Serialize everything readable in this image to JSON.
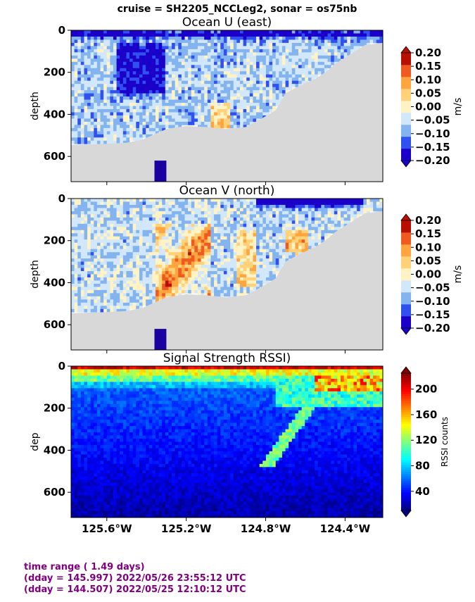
{
  "suptitle": "cruise = SH2205_NCCLeg2,  sonar = os75nb",
  "footer": {
    "line1": "time range ( 1.49 days)",
    "line2": "(dday = 145.997) 2022/05/26 23:55:12 UTC",
    "line3": "(dday = 144.507) 2022/05/25 12:10:12 UTC",
    "color": "#800080"
  },
  "chart_data": [
    {
      "type": "heatmap",
      "title": "Ocean U (east)",
      "ylabel": "depth",
      "xlabel": "",
      "ylim": [
        720,
        0
      ],
      "xlim": [
        -125.78,
        -124.21
      ],
      "yticks": [
        0,
        200,
        400,
        600
      ],
      "xticks": [
        -125.6,
        -125.2,
        -124.8,
        -124.4
      ],
      "xtick_labels": [
        "125.6°W",
        "125.2°W",
        "124.8°W",
        "124.4°W"
      ],
      "show_xtick_labels": false,
      "colorbar": {
        "label": "m/s",
        "ticks": [
          "0.20",
          "0.15",
          "0.10",
          "0.05",
          "0.00",
          "−0.05",
          "−0.10",
          "−0.15",
          "−0.20"
        ],
        "levels": [
          -0.2,
          -0.15,
          -0.1,
          -0.05,
          0,
          0.05,
          0.1,
          0.15,
          0.2
        ],
        "colors": [
          "#1a00c8",
          "#3050f0",
          "#84b4f0",
          "#d2e8fa",
          "#fff3c4",
          "#ffd27a",
          "#ffa540",
          "#ee5a20",
          "#b81000"
        ],
        "extend": "both"
      },
      "bottom_profile": {
        "lon": [
          -125.78,
          -125.6,
          -125.5,
          -125.42,
          -125.3,
          -125.2,
          -125.1,
          -125.0,
          -124.9,
          -124.82,
          -124.75,
          -124.7,
          -124.62,
          -124.55,
          -124.5,
          -124.45,
          -124.4,
          -124.35,
          -124.3,
          -124.21
        ],
        "depth": [
          545,
          540,
          535,
          520,
          470,
          455,
          460,
          470,
          460,
          420,
          380,
          300,
          260,
          230,
          200,
          160,
          130,
          100,
          70,
          60
        ]
      }
    },
    {
      "type": "heatmap",
      "title": "Ocean V (north)",
      "ylabel": "depth",
      "xlabel": "",
      "ylim": [
        720,
        0
      ],
      "xlim": [
        -125.78,
        -124.21
      ],
      "yticks": [
        0,
        200,
        400,
        600
      ],
      "xticks": [
        -125.6,
        -125.2,
        -124.8,
        -124.4
      ],
      "xtick_labels": [
        "125.6°W",
        "125.2°W",
        "124.8°W",
        "124.4°W"
      ],
      "show_xtick_labels": false,
      "colorbar": {
        "label": "m/s",
        "ticks": [
          "0.20",
          "0.15",
          "0.10",
          "0.05",
          "0.00",
          "−0.05",
          "−0.10",
          "−0.15",
          "−0.20"
        ],
        "levels": [
          -0.2,
          -0.15,
          -0.1,
          -0.05,
          0,
          0.05,
          0.1,
          0.15,
          0.2
        ],
        "colors": [
          "#1a00c8",
          "#3050f0",
          "#84b4f0",
          "#d2e8fa",
          "#fff3c4",
          "#ffd27a",
          "#ffa540",
          "#ee5a20",
          "#b81000"
        ],
        "extend": "both"
      },
      "bottom_profile": {
        "lon": [
          -125.78,
          -125.6,
          -125.5,
          -125.42,
          -125.3,
          -125.2,
          -125.1,
          -125.0,
          -124.9,
          -124.82,
          -124.75,
          -124.7,
          -124.62,
          -124.55,
          -124.5,
          -124.45,
          -124.4,
          -124.35,
          -124.3,
          -124.21
        ],
        "depth": [
          545,
          540,
          535,
          520,
          470,
          455,
          460,
          470,
          460,
          420,
          380,
          300,
          260,
          230,
          200,
          160,
          130,
          100,
          70,
          60
        ]
      }
    },
    {
      "type": "heatmap",
      "title": "Signal Strength RSSI)",
      "ylabel": "dep",
      "xlabel": "",
      "ylim": [
        720,
        0
      ],
      "xlim": [
        -125.78,
        -124.21
      ],
      "yticks": [
        0,
        200,
        400,
        600
      ],
      "xticks": [
        -125.6,
        -125.2,
        -124.8,
        -124.4
      ],
      "xtick_labels": [
        "125.6°W",
        "125.2°W",
        "124.8°W",
        "124.4°W"
      ],
      "show_xtick_labels": true,
      "colorbar": {
        "label": "RSSI counts",
        "ticks": [
          "200",
          "160",
          "120",
          "80",
          "40"
        ],
        "tick_values": [
          200,
          160,
          120,
          80,
          40
        ],
        "range": [
          10,
          225
        ],
        "colormap": "jet",
        "extend": "both"
      }
    }
  ]
}
